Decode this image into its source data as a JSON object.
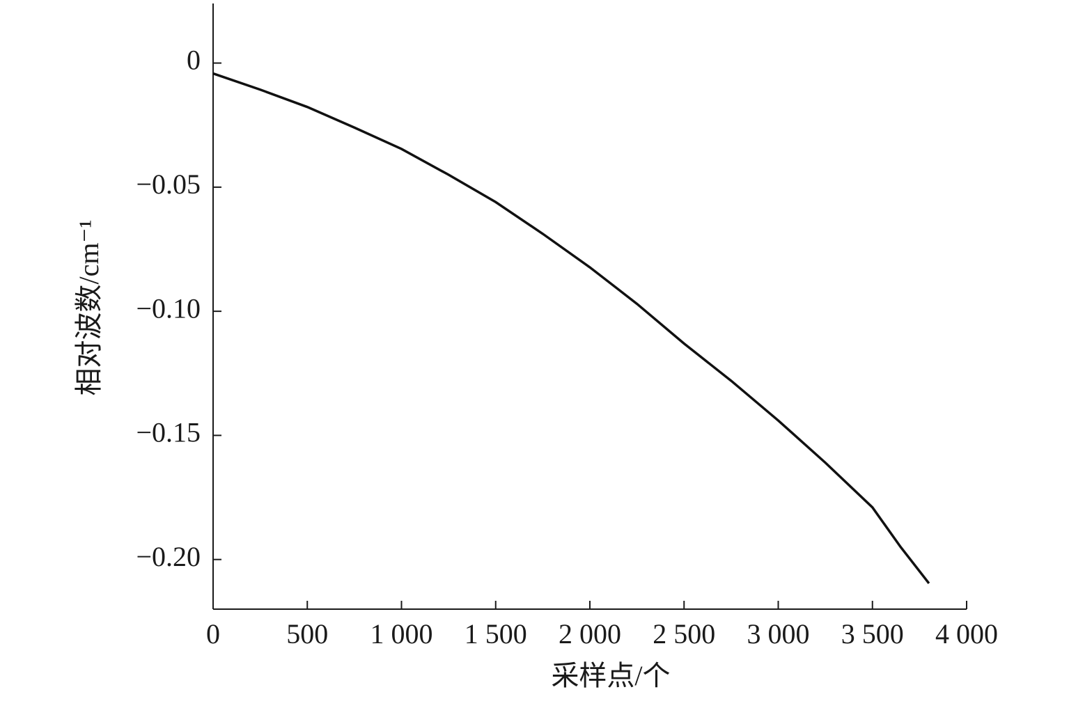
{
  "chart_data": {
    "type": "line",
    "xlabel": "采样点/个",
    "ylabel": "相对波数/cm⁻¹",
    "x": [
      0,
      250,
      500,
      750,
      1000,
      1250,
      1500,
      1750,
      2000,
      2250,
      2500,
      2750,
      3000,
      3250,
      3500,
      3650,
      3800
    ],
    "series": [
      {
        "color": "#111111",
        "values": [
          -0.0042,
          -0.0107,
          -0.0177,
          -0.026,
          -0.0346,
          -0.045,
          -0.056,
          -0.0688,
          -0.0823,
          -0.097,
          -0.113,
          -0.128,
          -0.144,
          -0.161,
          -0.179,
          -0.195,
          -0.2096
        ]
      }
    ],
    "xlim": [
      0,
      4000
    ],
    "ylim": [
      -0.22,
      0.024
    ],
    "xticks": [
      0,
      500,
      {
        "value": 1000,
        "label": "1 000"
      },
      {
        "value": 1500,
        "label": "1 500"
      },
      {
        "value": 2000,
        "label": "2 000"
      },
      {
        "value": 2500,
        "label": "2 500"
      },
      {
        "value": 3000,
        "label": "3 000"
      },
      {
        "value": 3500,
        "label": "3 500"
      },
      {
        "value": 4000,
        "label": "4 000"
      }
    ],
    "yticks": [
      0,
      {
        "value": -0.05,
        "label": "−0.05"
      },
      {
        "value": -0.1,
        "label": "−0.10"
      },
      {
        "value": -0.15,
        "label": "−0.15"
      },
      {
        "value": -0.2,
        "label": "−0.20"
      }
    ],
    "grid": false
  }
}
